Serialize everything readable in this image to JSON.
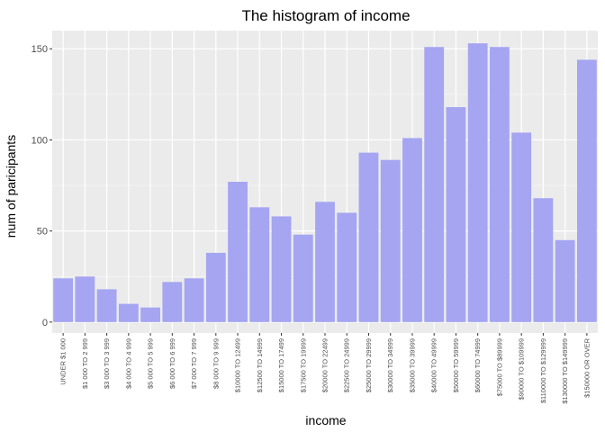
{
  "chart_data": {
    "type": "bar",
    "title": "The histogram of income",
    "xlabel": "income",
    "ylabel": "num of paricipants",
    "ylim": [
      -6,
      160
    ],
    "yticks": [
      0,
      50,
      100,
      150
    ],
    "grid": true,
    "legend": "none",
    "colors": {
      "bar": "#a5a5f2",
      "panel": "#ebebeb",
      "grid_major": "#ffffff",
      "grid_minor": "#f5f5f5",
      "tick_text": "#4d4d4d"
    },
    "categories": [
      "UNDER $1 000",
      "$1 000 TO 2 999",
      "$3 000 TO 3 999",
      "$4 000 TO 4 999",
      "$5 000 TO 5 999",
      "$6 000 TO 6 999",
      "$7 000 TO 7 999",
      "$8 000 TO 9 999",
      "$10000 TO 12499",
      "$12500 TO 14999",
      "$15000 TO 17499",
      "$17500 TO 19999",
      "$20000 TO 22499",
      "$22500 TO 24999",
      "$25000 TO 29999",
      "$30000 TO 34999",
      "$35000 TO 39999",
      "$40000 TO 49999",
      "$50000 TO 59999",
      "$60000 TO 74999",
      "$75000 TO $89999",
      "$90000 TO $109999",
      "$110000 TO $129999",
      "$130000 TO $149999",
      "$150000 OR OVER"
    ],
    "values": [
      24,
      25,
      18,
      10,
      8,
      22,
      24,
      38,
      77,
      63,
      58,
      48,
      66,
      60,
      93,
      89,
      101,
      151,
      118,
      153,
      151,
      104,
      68,
      45,
      144
    ]
  }
}
